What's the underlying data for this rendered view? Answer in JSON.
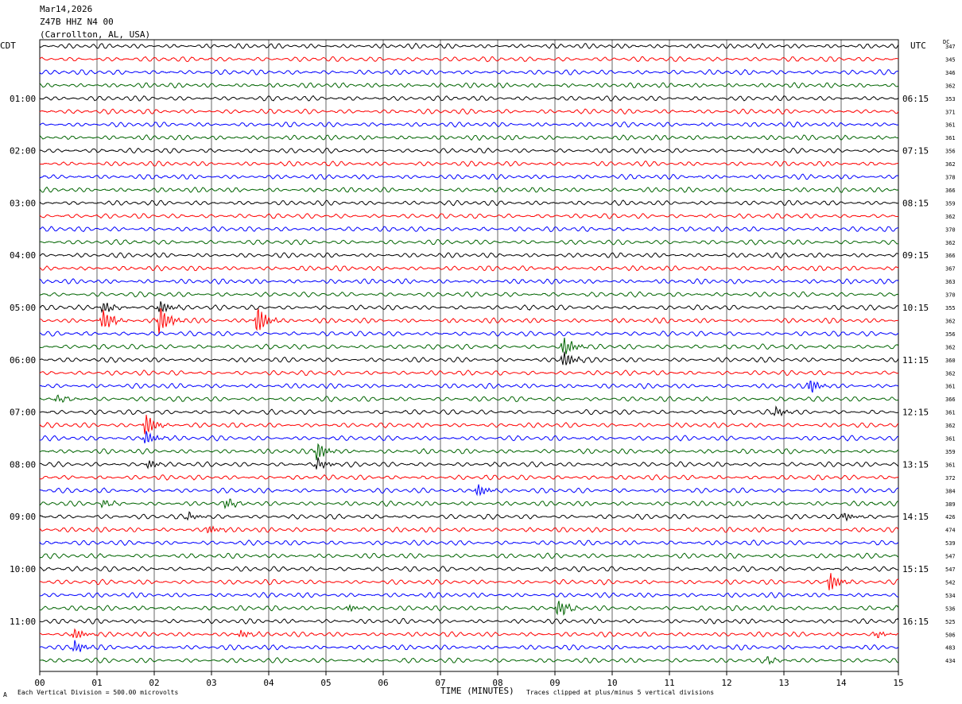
{
  "header": {
    "date": "Mar14,2026",
    "station": "Z47B HHZ N4 00",
    "location": "(Carrollton, AL, USA)"
  },
  "left_axis_label": "CDT",
  "right_axis_label": "UTC",
  "dc_label": "DC",
  "x_axis_title": "TIME (MINUTES)",
  "footer": {
    "scale_note": "Each Vertical Division =  500.00 microvolts",
    "clip_note": "Traces clipped at plus/minus 5 vertical divisions",
    "mark": "A"
  },
  "chart_data": {
    "type": "line",
    "description_kind": "helicorder",
    "x_range_minutes": [
      0,
      15
    ],
    "x_ticks": [
      "00",
      "01",
      "02",
      "03",
      "04",
      "05",
      "06",
      "07",
      "08",
      "09",
      "10",
      "11",
      "12",
      "13",
      "14",
      "15"
    ],
    "trace_count": 48,
    "trace_colors": [
      "#000000",
      "#ff0000",
      "#0000ff",
      "#006400"
    ],
    "left_time_labels": [
      {
        "trace": 4,
        "label": "01:00"
      },
      {
        "trace": 8,
        "label": "02:00"
      },
      {
        "trace": 12,
        "label": "03:00"
      },
      {
        "trace": 16,
        "label": "04:00"
      },
      {
        "trace": 20,
        "label": "05:00"
      },
      {
        "trace": 24,
        "label": "06:00"
      },
      {
        "trace": 28,
        "label": "07:00"
      },
      {
        "trace": 32,
        "label": "08:00"
      },
      {
        "trace": 36,
        "label": "09:00"
      },
      {
        "trace": 40,
        "label": "10:00"
      },
      {
        "trace": 44,
        "label": "11:00"
      }
    ],
    "right_time_labels": [
      {
        "trace": 4,
        "label": "06:15"
      },
      {
        "trace": 8,
        "label": "07:15"
      },
      {
        "trace": 12,
        "label": "08:15"
      },
      {
        "trace": 16,
        "label": "09:15"
      },
      {
        "trace": 20,
        "label": "10:15"
      },
      {
        "trace": 24,
        "label": "11:15"
      },
      {
        "trace": 28,
        "label": "12:15"
      },
      {
        "trace": 32,
        "label": "13:15"
      },
      {
        "trace": 36,
        "label": "14:15"
      },
      {
        "trace": 40,
        "label": "15:15"
      },
      {
        "trace": 44,
        "label": "16:15"
      }
    ],
    "dc_values": [
      "347",
      "345",
      "346",
      "362",
      "353",
      "371",
      "361",
      "361",
      "356",
      "362",
      "378",
      "366",
      "359",
      "362",
      "370",
      "362",
      "366",
      "367",
      "363",
      "370",
      "355",
      "362",
      "356",
      "362",
      "360",
      "362",
      "361",
      "366",
      "361",
      "362",
      "361",
      "359",
      "361",
      "372",
      "384",
      "389",
      "426",
      "474",
      "539",
      "547",
      "547",
      "542",
      "534",
      "536",
      "525",
      "506",
      "483",
      "434"
    ],
    "events": [
      {
        "trace": 21,
        "minute": 1.1,
        "amp": 5
      },
      {
        "trace": 21,
        "minute": 2.1,
        "amp": 6
      },
      {
        "trace": 21,
        "minute": 3.8,
        "amp": 6
      },
      {
        "trace": 20,
        "minute": 1.1,
        "amp": 3
      },
      {
        "trace": 20,
        "minute": 2.1,
        "amp": 3
      },
      {
        "trace": 23,
        "minute": 9.15,
        "amp": 4
      },
      {
        "trace": 24,
        "minute": 9.15,
        "amp": 4
      },
      {
        "trace": 26,
        "minute": 13.45,
        "amp": 3
      },
      {
        "trace": 27,
        "minute": 0.3,
        "amp": 1.5
      },
      {
        "trace": 28,
        "minute": 12.85,
        "amp": 2
      },
      {
        "trace": 29,
        "minute": 1.85,
        "amp": 5
      },
      {
        "trace": 30,
        "minute": 1.85,
        "amp": 3
      },
      {
        "trace": 31,
        "minute": 4.85,
        "amp": 4
      },
      {
        "trace": 32,
        "minute": 1.9,
        "amp": 2
      },
      {
        "trace": 32,
        "minute": 4.85,
        "amp": 2.5
      },
      {
        "trace": 34,
        "minute": 7.65,
        "amp": 3
      },
      {
        "trace": 35,
        "minute": 3.25,
        "amp": 2
      },
      {
        "trace": 35,
        "minute": 1.1,
        "amp": 1.5
      },
      {
        "trace": 36,
        "minute": 2.6,
        "amp": 1.5
      },
      {
        "trace": 37,
        "minute": 2.95,
        "amp": 2
      },
      {
        "trace": 36,
        "minute": 14.05,
        "amp": 2
      },
      {
        "trace": 41,
        "minute": 13.8,
        "amp": 4
      },
      {
        "trace": 43,
        "minute": 9.05,
        "amp": 4
      },
      {
        "trace": 43,
        "minute": 5.4,
        "amp": 1.5
      },
      {
        "trace": 45,
        "minute": 0.6,
        "amp": 2.5
      },
      {
        "trace": 46,
        "minute": 0.6,
        "amp": 2.5
      },
      {
        "trace": 45,
        "minute": 3.5,
        "amp": 1.5
      },
      {
        "trace": 45,
        "minute": 14.6,
        "amp": 1.5
      },
      {
        "trace": 47,
        "minute": 12.7,
        "amp": 1.2
      }
    ]
  }
}
